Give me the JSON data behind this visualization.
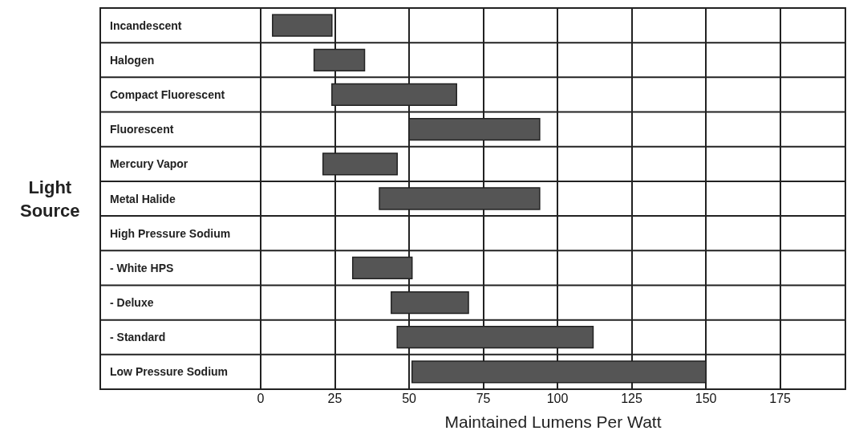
{
  "chart_data": {
    "type": "bar",
    "orientation": "horizontal",
    "xlabel": "Maintained Lumens Per Watt",
    "ylabel": "Light Source",
    "categories": [
      "Incandescent",
      "Halogen",
      "Compact Fluorescent",
      "Fluorescent",
      "Mercury Vapor",
      "Metal Halide",
      "High Pressure Sodium",
      "- White HPS",
      "- Deluxe",
      "- Standard",
      "Low Pressure Sodium"
    ],
    "base": [
      4,
      18,
      24,
      50,
      21,
      40,
      null,
      31,
      44,
      46,
      51
    ],
    "values": [
      20,
      17,
      42,
      44,
      25,
      54,
      null,
      20,
      26,
      66,
      99
    ],
    "color": "#555555",
    "xlim": [
      0,
      197
    ],
    "xticks": [
      0,
      25,
      50,
      75,
      100,
      125,
      150,
      175
    ],
    "grid": "x"
  }
}
